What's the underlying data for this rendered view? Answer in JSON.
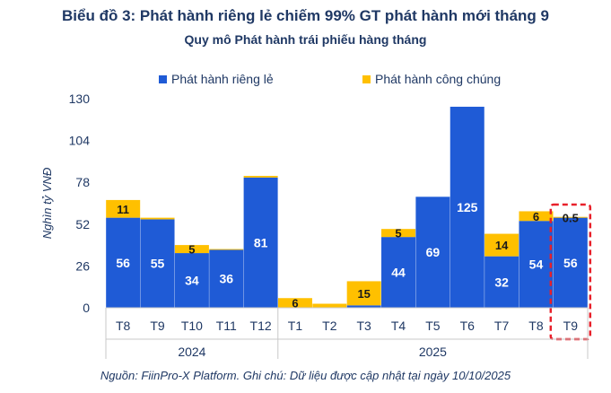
{
  "title": "Biểu đồ 3: Phát hành riêng lẻ chiếm 99% GT phát hành mới tháng 9",
  "subtitle": "Quy mô Phát hành trái phiếu hàng tháng",
  "source": "Nguồn: FiinPro-X Platform. Ghi chú: Dữ liệu được cập nhật tại ngày 10/10/2025",
  "colors": {
    "private": "#1f5bd6",
    "public": "#ffc000",
    "text": "#1f3864",
    "highlight": "#e8202a"
  },
  "chart_data": {
    "type": "bar",
    "stacked": true,
    "ylabel": "Nghìn tỷ VNĐ",
    "ylim": [
      0,
      130
    ],
    "yticks": [
      0,
      26,
      52,
      78,
      104,
      130
    ],
    "grid": false,
    "legend_position": "top",
    "categories": [
      "T8",
      "T9",
      "T10",
      "T11",
      "T12",
      "T1",
      "T2",
      "T3",
      "T4",
      "T5",
      "T6",
      "T7",
      "T8",
      "T9"
    ],
    "groups": [
      {
        "label": "2024",
        "start": 0,
        "end": 4
      },
      {
        "label": "2025",
        "start": 5,
        "end": 13
      }
    ],
    "series": [
      {
        "name": "Phát hành riêng lẻ",
        "values": [
          56,
          55,
          34,
          36,
          81,
          0,
          0,
          1.5,
          44,
          69,
          125,
          32,
          54,
          56
        ],
        "labels": [
          "56",
          "55",
          "34",
          "36",
          "81",
          "",
          "",
          "",
          "44",
          "69",
          "125",
          "32",
          "54",
          "56"
        ]
      },
      {
        "name": "Phát hành công chúng",
        "values": [
          11,
          1,
          5,
          0.5,
          1,
          6,
          2.5,
          15,
          5,
          0,
          0,
          14,
          6,
          0.5
        ],
        "labels": [
          "11",
          "",
          "5",
          "",
          "",
          "6",
          "",
          "15",
          "5",
          "",
          "",
          "14",
          "6",
          "0.5"
        ]
      }
    ],
    "highlight_index": 13
  }
}
